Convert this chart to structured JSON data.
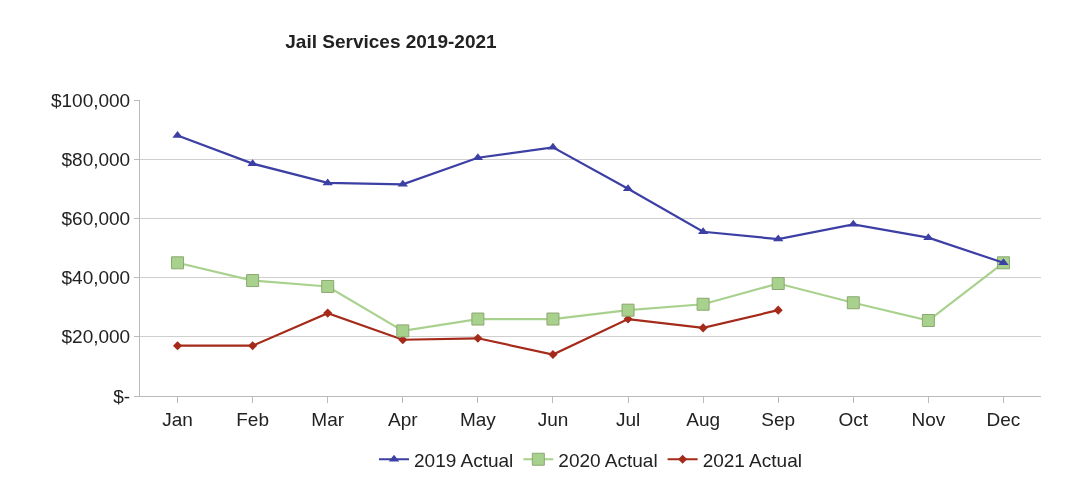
{
  "chart_data": {
    "type": "line",
    "title": "Jail Services 2019-2021",
    "categories": [
      "Jan",
      "Feb",
      "Mar",
      "Apr",
      "May",
      "Jun",
      "Jul",
      "Aug",
      "Sep",
      "Oct",
      "Nov",
      "Dec"
    ],
    "series": [
      {
        "name": "2019 Actual",
        "color": "#3c3fa3",
        "marker": "triangle",
        "values": [
          88000,
          78500,
          72000,
          71500,
          80500,
          84000,
          70000,
          55500,
          53000,
          58000,
          53500,
          45000
        ]
      },
      {
        "name": "2020 Actual",
        "color": "#a9d18e",
        "marker": "square",
        "values": [
          45000,
          39000,
          37000,
          22000,
          26000,
          26000,
          29000,
          31000,
          38000,
          31500,
          25500,
          45000
        ]
      },
      {
        "name": "2021 Actual",
        "color": "#a52a1a",
        "marker": "diamond",
        "values": [
          17000,
          17000,
          28000,
          19000,
          19500,
          14000,
          26000,
          23000,
          29000,
          null,
          null,
          null
        ]
      }
    ],
    "ylim": [
      0,
      100000
    ],
    "yticks": [
      {
        "value": 0,
        "label": "$-"
      },
      {
        "value": 20000,
        "label": "$20,000"
      },
      {
        "value": 40000,
        "label": "$40,000"
      },
      {
        "value": 60000,
        "label": "$60,000"
      },
      {
        "value": 80000,
        "label": "$80,000"
      },
      {
        "value": 100000,
        "label": "$100,000"
      }
    ],
    "grid": "y",
    "legend": "bottom"
  }
}
